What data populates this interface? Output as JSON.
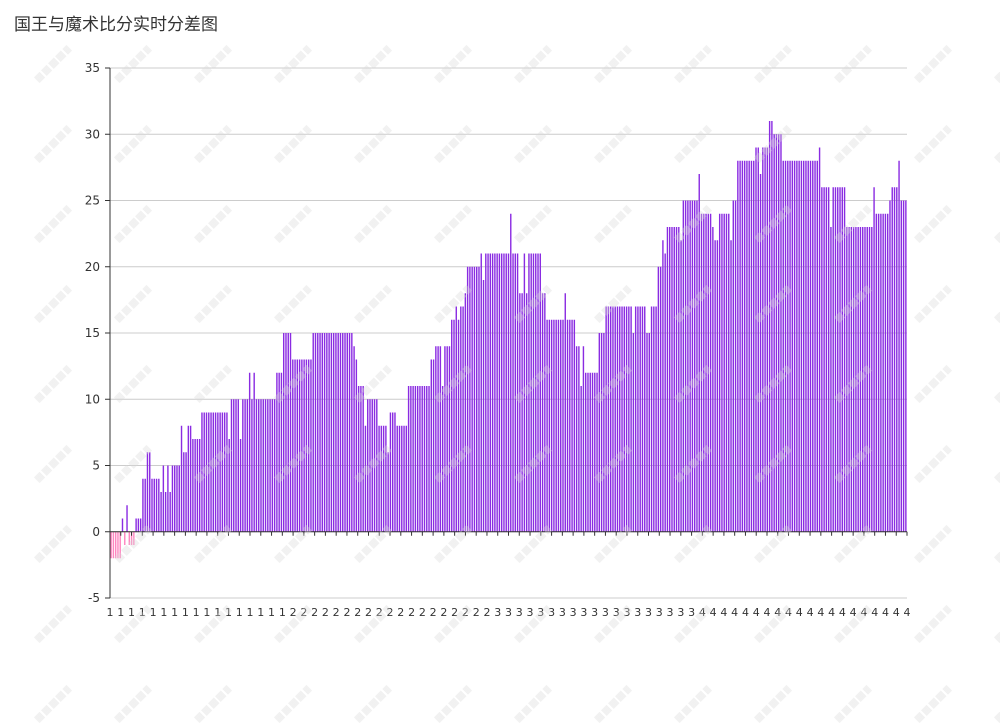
{
  "chart_data": {
    "type": "bar",
    "title": "国王与魔术比分实时分差图",
    "xlabel": "",
    "ylabel": "",
    "ylim": [
      -5,
      35
    ],
    "yticks": [
      -5,
      0,
      5,
      10,
      15,
      20,
      25,
      30,
      35
    ],
    "grid": true,
    "legend": "none",
    "colors": {
      "positive": "#8a2be2",
      "negative": "#ff85c0",
      "grid": "#cccccc",
      "axis": "#333333",
      "text": "#333333"
    },
    "x_tick_labels": [
      "1",
      "1",
      "1",
      "1",
      "1",
      "1",
      "1",
      "1",
      "1",
      "1",
      "1",
      "1",
      "1",
      "1",
      "1",
      "1",
      "1",
      "2",
      "2",
      "2",
      "2",
      "2",
      "2",
      "2",
      "2",
      "2",
      "2",
      "2",
      "2",
      "2",
      "2",
      "2",
      "2",
      "2",
      "2",
      "2",
      "3",
      "3",
      "3",
      "3",
      "3",
      "3",
      "3",
      "3",
      "3",
      "3",
      "3",
      "3",
      "3",
      "3",
      "3",
      "3",
      "3",
      "3",
      "3",
      "4",
      "4",
      "4",
      "4",
      "4",
      "4",
      "4",
      "4",
      "4",
      "4",
      "4",
      "4",
      "4",
      "4",
      "4",
      "4",
      "4",
      "4",
      "4",
      "4"
    ],
    "values": [
      -2,
      -2,
      -2,
      -2,
      -2,
      1,
      -1,
      2,
      -1,
      -1,
      -1,
      1,
      1,
      1,
      4,
      4,
      6,
      6,
      4,
      4,
      4,
      4,
      3,
      5,
      3,
      5,
      3,
      5,
      5,
      5,
      5,
      8,
      6,
      6,
      8,
      8,
      7,
      7,
      7,
      7,
      9,
      9,
      9,
      9,
      9,
      9,
      9,
      9,
      9,
      9,
      9,
      9,
      7,
      10,
      10,
      10,
      10,
      7,
      10,
      10,
      10,
      12,
      10,
      12,
      10,
      10,
      10,
      10,
      10,
      10,
      10,
      10,
      10,
      12,
      12,
      12,
      15,
      15,
      15,
      15,
      13,
      13,
      13,
      13,
      13,
      13,
      13,
      13,
      13,
      15,
      15,
      15,
      15,
      15,
      15,
      15,
      15,
      15,
      15,
      15,
      15,
      15,
      15,
      15,
      15,
      15,
      15,
      14,
      13,
      11,
      11,
      11,
      8,
      10,
      10,
      10,
      10,
      10,
      8,
      8,
      8,
      8,
      6,
      9,
      9,
      9,
      8,
      8,
      8,
      8,
      8,
      11,
      11,
      11,
      11,
      11,
      11,
      11,
      11,
      11,
      11,
      13,
      13,
      14,
      14,
      14,
      11,
      14,
      14,
      14,
      16,
      16,
      17,
      16,
      17,
      17,
      18,
      20,
      20,
      20,
      20,
      20,
      20,
      21,
      19,
      21,
      21,
      21,
      21,
      21,
      21,
      21,
      21,
      21,
      21,
      21,
      24,
      21,
      21,
      21,
      18,
      18,
      21,
      18,
      21,
      21,
      21,
      21,
      21,
      21,
      18,
      18,
      16,
      16,
      16,
      16,
      16,
      16,
      16,
      16,
      18,
      16,
      16,
      16,
      16,
      14,
      14,
      11,
      14,
      12,
      12,
      12,
      12,
      12,
      12,
      15,
      15,
      15,
      17,
      17,
      17,
      17,
      17,
      17,
      17,
      17,
      17,
      17,
      17,
      17,
      15,
      17,
      17,
      17,
      17,
      17,
      15,
      15,
      17,
      17,
      17,
      20,
      20,
      22,
      21,
      23,
      23,
      23,
      23,
      23,
      23,
      22,
      25,
      25,
      25,
      25,
      25,
      25,
      25,
      27,
      24,
      24,
      24,
      24,
      24,
      23,
      22,
      22,
      24,
      24,
      24,
      24,
      24,
      22,
      25,
      25,
      28,
      28,
      28,
      28,
      28,
      28,
      28,
      28,
      29,
      29,
      27,
      29,
      29,
      29,
      31,
      31,
      30,
      30,
      30,
      30,
      28,
      28,
      28,
      28,
      28,
      28,
      28,
      28,
      28,
      28,
      28,
      28,
      28,
      28,
      28,
      28,
      29,
      26,
      26,
      26,
      26,
      23,
      26,
      26,
      26,
      26,
      26,
      26,
      23,
      23,
      23,
      23,
      23,
      23,
      23,
      23,
      23,
      23,
      23,
      23,
      26,
      24,
      24,
      24,
      24,
      24,
      24,
      25,
      26,
      26,
      26,
      28,
      25,
      25,
      25
    ]
  }
}
